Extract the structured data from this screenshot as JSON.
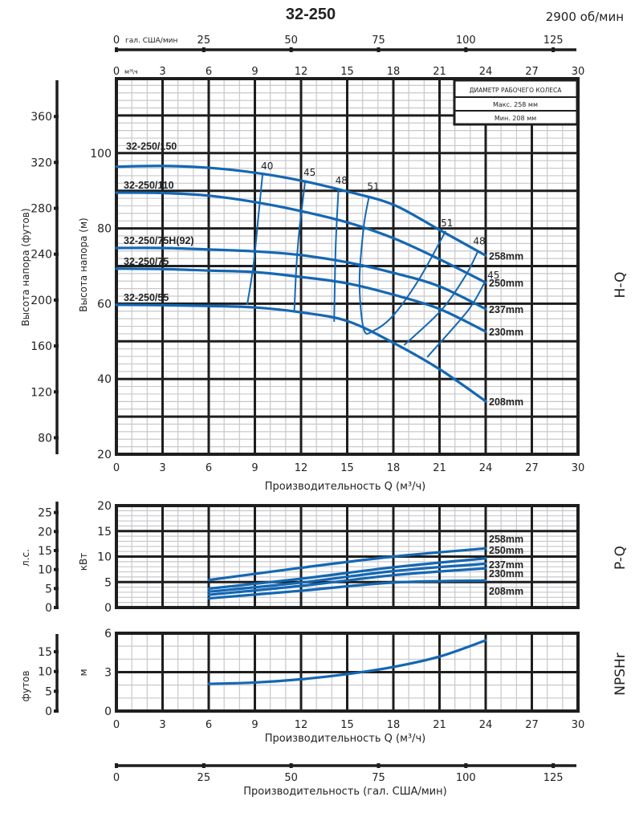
{
  "title": "32-250",
  "speed": "2900 об/мин",
  "legend": {
    "title": "ДИАМЕТР РАБОЧЕГО КОЛЕСА",
    "max": "Макс. 258 мм",
    "min": "Мин. 208 мм"
  },
  "top_axes": {
    "gal_unit": "гал. США/мин",
    "gal_ticks": [
      0,
      25,
      50,
      75,
      100,
      125
    ],
    "m3h_unit": "м³\\ч",
    "m3h_ticks": [
      0,
      3,
      6,
      9,
      12,
      15,
      18,
      21,
      24,
      27,
      30
    ]
  },
  "bottom_axis": {
    "gal_ticks": [
      0,
      25,
      50,
      75,
      100,
      125
    ],
    "label": "Производительность (гал. США/мин)"
  },
  "colors": {
    "curve": "#1467b3",
    "grid_major": "#1e1e1e",
    "grid_minor": "#c8c8cc"
  },
  "chart_data": [
    {
      "type": "line",
      "title": "H-Q",
      "xlabel": "Производительность Q (м³/ч)",
      "ylabel": "Высота напора (м)",
      "y2label": "Высота напора (футов)",
      "xlim": [
        0,
        30
      ],
      "ylim": [
        20,
        120
      ],
      "xticks": [
        0,
        3,
        6,
        9,
        12,
        15,
        18,
        21,
        24,
        27,
        30
      ],
      "yticks": [
        20,
        40,
        60,
        80,
        100
      ],
      "y2ticks": [
        80,
        120,
        160,
        200,
        240,
        280,
        320,
        360
      ],
      "grid": true,
      "series": [
        {
          "name": "258mm",
          "model": "32-250/150",
          "x": [
            0,
            3,
            6,
            9,
            12,
            15,
            18,
            21,
            24
          ],
          "y": [
            96.4,
            96.6,
            96.1,
            94.8,
            92.7,
            89.8,
            86.3,
            79.6,
            72.8
          ]
        },
        {
          "name": "250mm",
          "model": "32-250/110",
          "x": [
            0,
            3,
            6,
            9,
            12,
            15,
            18,
            21,
            24
          ],
          "y": [
            89.5,
            89.4,
            88.7,
            87.0,
            84.6,
            81.6,
            77.4,
            71.8,
            65.6
          ]
        },
        {
          "name": "237mm",
          "model": "32-250/75H(92)",
          "x": [
            0,
            3,
            6,
            9,
            12,
            15,
            18,
            21,
            24
          ],
          "y": [
            74.8,
            74.8,
            74.4,
            73.9,
            72.9,
            71.0,
            68.2,
            64.6,
            58.6
          ]
        },
        {
          "name": "230mm",
          "model": "32-250/75",
          "x": [
            0,
            3,
            6,
            9,
            12,
            15,
            18,
            21,
            24
          ],
          "y": [
            69.3,
            69.2,
            68.8,
            68.4,
            67.1,
            65.4,
            62.4,
            58.6,
            52.6
          ]
        },
        {
          "name": "208mm",
          "model": "32-250/55",
          "x": [
            0,
            3,
            6,
            9,
            12,
            15,
            18,
            21,
            24
          ],
          "y": [
            59.7,
            59.6,
            59.4,
            59.0,
            57.7,
            55.4,
            49.6,
            42.6,
            34.1
          ]
        }
      ],
      "efficiency": [
        {
          "label": "40",
          "x": [
            9.5,
            9.2,
            8.9,
            8.5
          ],
          "y": [
            94.4,
            82,
            70,
            59.7
          ]
        },
        {
          "label": "45",
          "x": [
            12.26,
            11.9,
            11.7,
            11.56
          ],
          "y": [
            92.3,
            80,
            70,
            57.8
          ]
        },
        {
          "label": "48",
          "x": [
            14.43,
            14.25,
            14.15
          ],
          "y": [
            90.2,
            75,
            55.2
          ]
        },
        {
          "label": "51",
          "x": [
            16.4,
            16.07,
            15.8,
            16.07,
            16.7,
            18.0,
            19.7,
            21.4
          ],
          "y": [
            88.1,
            80.3,
            66,
            53.3,
            52.8,
            56.9,
            66.7,
            79.3
          ]
        },
        {
          "label": "51",
          "x": [
            21.4
          ],
          "y": [
            79.3
          ]
        },
        {
          "label": "48",
          "x": [
            23.5,
            22.7,
            21.1,
            18.7
          ],
          "y": [
            74,
            67.5,
            58.2,
            49
          ]
        },
        {
          "label": "45",
          "x": [
            23.9,
            22.85,
            20.2
          ],
          "y": [
            65.4,
            58.2,
            45.8
          ]
        }
      ]
    },
    {
      "type": "line",
      "title": "P-Q",
      "ylabel": "кВт",
      "y2label": "л.с.",
      "xlim": [
        0,
        30
      ],
      "ylim": [
        0,
        20
      ],
      "yticks": [
        0,
        5,
        10,
        15,
        20
      ],
      "y2ticks": [
        0,
        5,
        10,
        15,
        20,
        25
      ],
      "grid": true,
      "series": [
        {
          "name": "258mm",
          "x": [
            6,
            12,
            18,
            24
          ],
          "y": [
            5.4,
            7.8,
            10.0,
            11.6
          ]
        },
        {
          "name": "250mm",
          "x": [
            6,
            12,
            18,
            24
          ],
          "y": [
            3.7,
            5.65,
            7.9,
            9.65
          ]
        },
        {
          "name": "237mm",
          "x": [
            6,
            12,
            18,
            24
          ],
          "y": [
            3.1,
            4.9,
            7.15,
            8.6
          ]
        },
        {
          "name": "230mm",
          "x": [
            6,
            12,
            18,
            24
          ],
          "y": [
            2.5,
            4.25,
            6.35,
            7.7
          ]
        },
        {
          "name": "208mm",
          "x": [
            6,
            12,
            18,
            24
          ],
          "y": [
            1.8,
            3.3,
            4.9,
            5.3
          ]
        }
      ]
    },
    {
      "type": "line",
      "title": "NPSHr",
      "xlabel": "Производительность Q (м³/ч)",
      "ylabel": "м",
      "y2label": "футов",
      "xlim": [
        0,
        30
      ],
      "ylim": [
        0,
        6
      ],
      "xticks": [
        0,
        3,
        6,
        9,
        12,
        15,
        18,
        21,
        24,
        27,
        30
      ],
      "yticks": [
        0,
        3,
        6
      ],
      "y2ticks": [
        0,
        5,
        10,
        15
      ],
      "grid": true,
      "series": [
        {
          "x": [
            6,
            9,
            12,
            15,
            18,
            21,
            24
          ],
          "y": [
            2.1,
            2.2,
            2.45,
            2.85,
            3.4,
            4.2,
            5.45
          ]
        }
      ]
    }
  ]
}
